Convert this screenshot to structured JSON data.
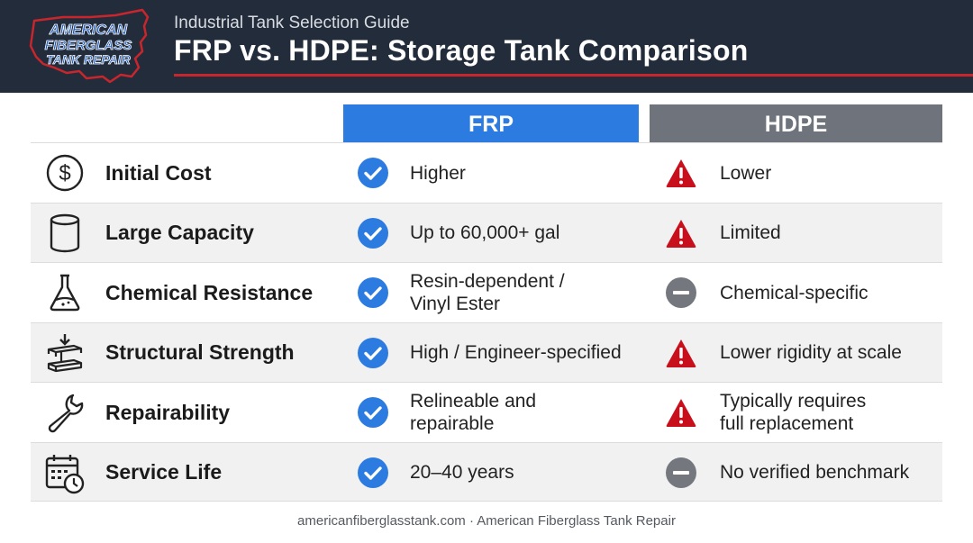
{
  "header": {
    "logo_text": [
      "AMERICAN",
      "FIBERGLASS",
      "TANK REPAIR"
    ],
    "subtitle": "Industrial Tank Selection Guide",
    "title": "FRP vs. HDPE: Storage Tank Comparison"
  },
  "columns": {
    "frp": "FRP",
    "hdpe": "HDPE"
  },
  "rows": [
    {
      "label": "Initial Cost",
      "icon": "dollar-circle-icon",
      "frp": {
        "status": "check",
        "text": "Higher"
      },
      "hdpe": {
        "status": "warning",
        "text": "Lower"
      }
    },
    {
      "label": "Large Capacity",
      "icon": "cylinder-tank-icon",
      "frp": {
        "status": "check",
        "text": "Up to 60,000+ gal"
      },
      "hdpe": {
        "status": "warning",
        "text": "Limited"
      }
    },
    {
      "label": "Chemical Resistance",
      "icon": "flask-icon",
      "frp": {
        "status": "check",
        "text": "Resin-dependent /\nVinyl Ester"
      },
      "hdpe": {
        "status": "neutral",
        "text": "Chemical-specific"
      }
    },
    {
      "label": "Structural Strength",
      "icon": "steel-beam-icon",
      "frp": {
        "status": "check",
        "text": "High / Engineer-specified"
      },
      "hdpe": {
        "status": "warning",
        "text": "Lower rigidity at scale"
      }
    },
    {
      "label": "Repairability",
      "icon": "wrench-icon",
      "frp": {
        "status": "check",
        "text": "Relineable and\nrepairable"
      },
      "hdpe": {
        "status": "warning",
        "text": "Typically requires\nfull replacement"
      }
    },
    {
      "label": "Service Life",
      "icon": "calendar-clock-icon",
      "frp": {
        "status": "check",
        "text": "20–40 years"
      },
      "hdpe": {
        "status": "neutral",
        "text": "No verified benchmark"
      }
    }
  ],
  "colors": {
    "header_bg": "#232c3b",
    "accent_red": "#c8262c",
    "frp_blue": "#2b7be0",
    "hdpe_gray": "#6e737c",
    "warning_red": "#c8101c",
    "neutral_gray": "#74787e"
  },
  "footer": "americanfiberglasstank.com · American Fiberglass Tank Repair"
}
